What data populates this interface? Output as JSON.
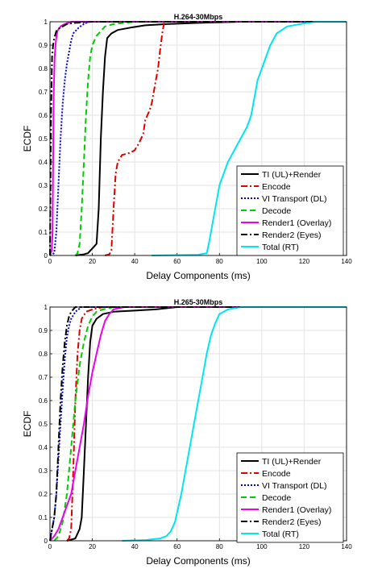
{
  "chart_data": [
    {
      "type": "line",
      "title": "H.264-30Mbps",
      "xlabel": "Delay Components (ms)",
      "ylabel": "ECDF",
      "xlim": [
        0,
        140
      ],
      "ylim": [
        0,
        1
      ],
      "x_ticks": [
        "0",
        "20",
        "40",
        "60",
        "80",
        "100",
        "120",
        "140"
      ],
      "y_ticks": [
        "0",
        "0.1",
        "0.2",
        "0.3",
        "0.4",
        "0.5",
        "0.6",
        "0.7",
        "0.8",
        "0.9",
        "1"
      ],
      "grid": true,
      "legend_position": "bottom-right",
      "series": [
        {
          "name": "TI (UL)+Render",
          "color": "#000000",
          "style": "solid",
          "points": [
            [
              12,
              0
            ],
            [
              16,
              0.005
            ],
            [
              18,
              0.01
            ],
            [
              19,
              0.02
            ],
            [
              20,
              0.03
            ],
            [
              21,
              0.04
            ],
            [
              22,
              0.05
            ],
            [
              23,
              0.2
            ],
            [
              24,
              0.5
            ],
            [
              25,
              0.7
            ],
            [
              26,
              0.85
            ],
            [
              27,
              0.93
            ],
            [
              29,
              0.95
            ],
            [
              32,
              0.965
            ],
            [
              38,
              0.975
            ],
            [
              45,
              0.985
            ],
            [
              55,
              0.99
            ],
            [
              70,
              0.995
            ],
            [
              90,
              1
            ],
            [
              140,
              1
            ]
          ]
        },
        {
          "name": "Encode",
          "color": "#e00000",
          "style": "dashdot",
          "points": [
            [
              26,
              0
            ],
            [
              28,
              0.005
            ],
            [
              29,
              0.02
            ],
            [
              30,
              0.2
            ],
            [
              31,
              0.35
            ],
            [
              32,
              0.4
            ],
            [
              34,
              0.43
            ],
            [
              38,
              0.44
            ],
            [
              40,
              0.45
            ],
            [
              42,
              0.48
            ],
            [
              44,
              0.52
            ],
            [
              45,
              0.58
            ],
            [
              46,
              0.6
            ],
            [
              47,
              0.62
            ],
            [
              48,
              0.65
            ],
            [
              49,
              0.7
            ],
            [
              50,
              0.75
            ],
            [
              51,
              0.8
            ],
            [
              52,
              0.88
            ],
            [
              53,
              0.95
            ],
            [
              54,
              1
            ],
            [
              140,
              1
            ]
          ]
        },
        {
          "name": "VI Transport (DL)",
          "color": "#0000dd",
          "style": "dotted",
          "points": [
            [
              0,
              0
            ],
            [
              2,
              0.01
            ],
            [
              3,
              0.1
            ],
            [
              4,
              0.3
            ],
            [
              5,
              0.5
            ],
            [
              6,
              0.65
            ],
            [
              7,
              0.75
            ],
            [
              8,
              0.82
            ],
            [
              9,
              0.87
            ],
            [
              10,
              0.92
            ],
            [
              11,
              0.95
            ],
            [
              13,
              0.97
            ],
            [
              15,
              0.985
            ],
            [
              18,
              1
            ],
            [
              140,
              1
            ]
          ]
        },
        {
          "name": "Decode",
          "color": "#00cc00",
          "style": "dashed",
          "points": [
            [
              12,
              0
            ],
            [
              13,
              0.01
            ],
            [
              14,
              0.05
            ],
            [
              15,
              0.2
            ],
            [
              16,
              0.4
            ],
            [
              17,
              0.6
            ],
            [
              18,
              0.75
            ],
            [
              19,
              0.85
            ],
            [
              20,
              0.9
            ],
            [
              22,
              0.94
            ],
            [
              24,
              0.96
            ],
            [
              26,
              0.98
            ],
            [
              30,
              0.99
            ],
            [
              40,
              1
            ],
            [
              140,
              1
            ]
          ]
        },
        {
          "name": "Render1 (Overlay)",
          "color": "#ee00ee",
          "style": "solid",
          "points": [
            [
              0,
              0
            ],
            [
              0.8,
              0.02
            ],
            [
              1.2,
              0.1
            ],
            [
              1.5,
              0.4
            ],
            [
              1.8,
              0.7
            ],
            [
              2.2,
              0.85
            ],
            [
              2.8,
              0.92
            ],
            [
              3.5,
              0.96
            ],
            [
              5,
              0.98
            ],
            [
              7,
              0.99
            ],
            [
              10,
              1
            ],
            [
              140,
              1
            ]
          ]
        },
        {
          "name": "Render2 (Eyes)",
          "color": "#000000",
          "style": "dashdot",
          "points": [
            [
              0,
              0
            ],
            [
              0.5,
              0.6
            ],
            [
              1,
              0.85
            ],
            [
              1.5,
              0.9
            ],
            [
              2,
              0.93
            ],
            [
              3,
              0.96
            ],
            [
              4,
              0.97
            ],
            [
              6,
              0.98
            ],
            [
              8,
              0.99
            ],
            [
              12,
              0.995
            ],
            [
              20,
              1
            ],
            [
              140,
              1
            ]
          ]
        },
        {
          "name": "Total (RT)",
          "color": "#00e5ee",
          "style": "solid",
          "points": [
            [
              48,
              0
            ],
            [
              70,
              0.003
            ],
            [
              74,
              0.01
            ],
            [
              75,
              0.05
            ],
            [
              76,
              0.1
            ],
            [
              77,
              0.15
            ],
            [
              78,
              0.2
            ],
            [
              79,
              0.25
            ],
            [
              80,
              0.3
            ],
            [
              82,
              0.35
            ],
            [
              84,
              0.4
            ],
            [
              87,
              0.45
            ],
            [
              90,
              0.5
            ],
            [
              93,
              0.55
            ],
            [
              95,
              0.6
            ],
            [
              97,
              0.7
            ],
            [
              98,
              0.75
            ],
            [
              100,
              0.8
            ],
            [
              102,
              0.85
            ],
            [
              104,
              0.9
            ],
            [
              107,
              0.95
            ],
            [
              112,
              0.98
            ],
            [
              118,
              0.99
            ],
            [
              125,
              1
            ],
            [
              140,
              1
            ]
          ]
        }
      ]
    },
    {
      "type": "line",
      "title": "H.265-30Mbps",
      "xlabel": "Delay Components (ms)",
      "ylabel": "ECDF",
      "xlim": [
        0,
        140
      ],
      "ylim": [
        0,
        1
      ],
      "x_ticks": [
        "0",
        "20",
        "40",
        "60",
        "80",
        "100",
        "120",
        "140"
      ],
      "y_ticks": [
        "0",
        "0.1",
        "0.2",
        "0.3",
        "0.4",
        "0.5",
        "0.6",
        "0.7",
        "0.8",
        "0.9",
        "1"
      ],
      "grid": true,
      "legend_position": "bottom-right",
      "series": [
        {
          "name": "TI (UL)+Render",
          "color": "#000000",
          "style": "solid",
          "points": [
            [
              8,
              0
            ],
            [
              12,
              0.01
            ],
            [
              14,
              0.05
            ],
            [
              15,
              0.1
            ],
            [
              16,
              0.3
            ],
            [
              17,
              0.5
            ],
            [
              18,
              0.7
            ],
            [
              19,
              0.85
            ],
            [
              20,
              0.92
            ],
            [
              22,
              0.95
            ],
            [
              25,
              0.97
            ],
            [
              30,
              0.98
            ],
            [
              40,
              0.985
            ],
            [
              50,
              0.99
            ],
            [
              60,
              1
            ],
            [
              140,
              1
            ]
          ]
        },
        {
          "name": "Encode",
          "color": "#e00000",
          "style": "dashdot",
          "points": [
            [
              8,
              0
            ],
            [
              9,
              0.01
            ],
            [
              10,
              0.05
            ],
            [
              11,
              0.3
            ],
            [
              12,
              0.6
            ],
            [
              13,
              0.8
            ],
            [
              14,
              0.9
            ],
            [
              15,
              0.95
            ],
            [
              17,
              0.98
            ],
            [
              20,
              0.99
            ],
            [
              25,
              1
            ],
            [
              140,
              1
            ]
          ]
        },
        {
          "name": "VI Transport (DL)",
          "color": "#0000dd",
          "style": "dotted",
          "points": [
            [
              0,
              0
            ],
            [
              1,
              0.05
            ],
            [
              2,
              0.1
            ],
            [
              3,
              0.2
            ],
            [
              4,
              0.35
            ],
            [
              5,
              0.5
            ],
            [
              6,
              0.65
            ],
            [
              7,
              0.78
            ],
            [
              8,
              0.87
            ],
            [
              9,
              0.92
            ],
            [
              10,
              0.95
            ],
            [
              12,
              0.98
            ],
            [
              15,
              1
            ],
            [
              140,
              1
            ]
          ]
        },
        {
          "name": "Decode",
          "color": "#00cc00",
          "style": "dashed",
          "points": [
            [
              2,
              0
            ],
            [
              4,
              0.02
            ],
            [
              6,
              0.08
            ],
            [
              8,
              0.2
            ],
            [
              10,
              0.4
            ],
            [
              12,
              0.6
            ],
            [
              14,
              0.75
            ],
            [
              16,
              0.85
            ],
            [
              18,
              0.92
            ],
            [
              20,
              0.96
            ],
            [
              22,
              0.98
            ],
            [
              25,
              0.99
            ],
            [
              30,
              1
            ],
            [
              140,
              1
            ]
          ]
        },
        {
          "name": "Render1 (Overlay)",
          "color": "#ee00ee",
          "style": "solid",
          "points": [
            [
              0,
              0
            ],
            [
              2,
              0.02
            ],
            [
              4,
              0.05
            ],
            [
              6,
              0.1
            ],
            [
              8,
              0.15
            ],
            [
              10,
              0.2
            ],
            [
              12,
              0.3
            ],
            [
              14,
              0.4
            ],
            [
              16,
              0.5
            ],
            [
              18,
              0.62
            ],
            [
              20,
              0.72
            ],
            [
              22,
              0.8
            ],
            [
              24,
              0.88
            ],
            [
              26,
              0.94
            ],
            [
              28,
              0.97
            ],
            [
              30,
              0.99
            ],
            [
              35,
              1
            ],
            [
              140,
              1
            ]
          ]
        },
        {
          "name": "Render2 (Eyes)",
          "color": "#000000",
          "style": "dashdot",
          "points": [
            [
              0,
              0
            ],
            [
              1,
              0.05
            ],
            [
              2,
              0.1
            ],
            [
              3,
              0.2
            ],
            [
              4,
              0.4
            ],
            [
              5,
              0.6
            ],
            [
              6,
              0.75
            ],
            [
              7,
              0.85
            ],
            [
              8,
              0.92
            ],
            [
              9,
              0.96
            ],
            [
              10,
              0.98
            ],
            [
              12,
              1
            ],
            [
              140,
              1
            ]
          ]
        },
        {
          "name": "Total (RT)",
          "color": "#00e5ee",
          "style": "solid",
          "points": [
            [
              34,
              0
            ],
            [
              45,
              0.003
            ],
            [
              52,
              0.01
            ],
            [
              55,
              0.02
            ],
            [
              57,
              0.04
            ],
            [
              59,
              0.08
            ],
            [
              60,
              0.12
            ],
            [
              62,
              0.2
            ],
            [
              64,
              0.3
            ],
            [
              66,
              0.4
            ],
            [
              68,
              0.5
            ],
            [
              70,
              0.6
            ],
            [
              72,
              0.7
            ],
            [
              74,
              0.8
            ],
            [
              76,
              0.88
            ],
            [
              78,
              0.93
            ],
            [
              80,
              0.97
            ],
            [
              84,
              0.99
            ],
            [
              90,
              1
            ],
            [
              140,
              1
            ]
          ]
        }
      ]
    }
  ]
}
